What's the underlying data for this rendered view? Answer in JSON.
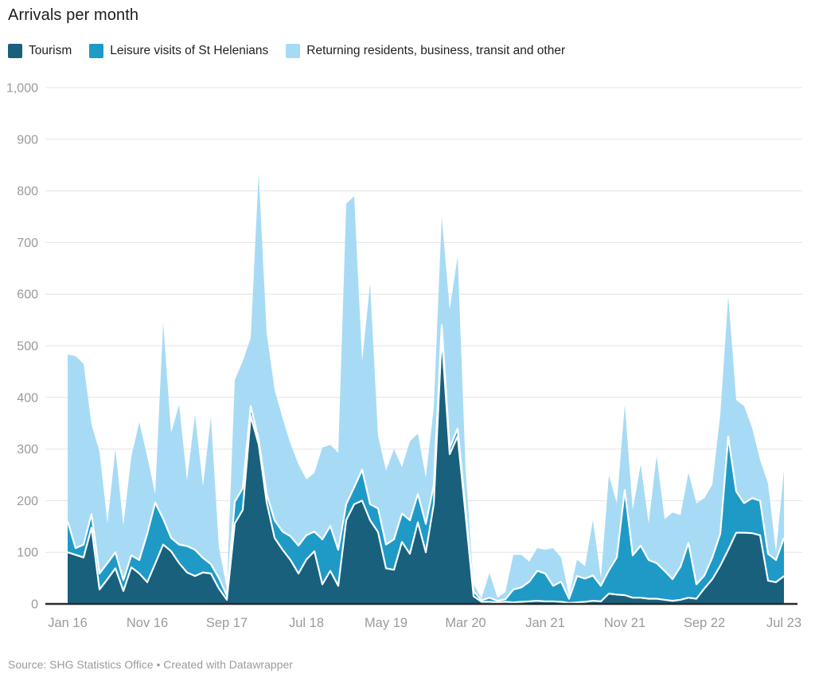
{
  "title": "Arrivals per month",
  "source": "Source: SHG Statistics Office • Created with Datawrapper",
  "colors": {
    "tourism": "#18607c",
    "leisure": "#1f9ac6",
    "returning": "#a7dbf5",
    "grid": "#e4e4e4",
    "baseline": "#2b2b2b",
    "axis_text": "#9a9a9a",
    "separator": "#ffffff"
  },
  "legend": {
    "items": [
      {
        "label": "Tourism",
        "color": "#18607c"
      },
      {
        "label": "Leisure visits of St Helenians",
        "color": "#1f9ac6"
      },
      {
        "label": "Returning residents, business, transit and other",
        "color": "#a7dbf5"
      }
    ]
  },
  "chart_data": {
    "type": "area",
    "stacked": true,
    "title": "Arrivals per month",
    "xlabel": "",
    "ylabel": "",
    "ylim": [
      0,
      1000
    ],
    "grid": "horizontal",
    "legend_position": "top",
    "months": [
      "Jan 16",
      "Feb 16",
      "Mar 16",
      "Apr 16",
      "May 16",
      "Jun 16",
      "Jul 16",
      "Aug 16",
      "Sep 16",
      "Oct 16",
      "Nov 16",
      "Dec 16",
      "Jan 17",
      "Feb 17",
      "Mar 17",
      "Apr 17",
      "May 17",
      "Jun 17",
      "Jul 17",
      "Aug 17",
      "Sep 17",
      "Oct 17",
      "Nov 17",
      "Dec 17",
      "Jan 18",
      "Feb 18",
      "Mar 18",
      "Apr 18",
      "May 18",
      "Jun 18",
      "Jul 18",
      "Aug 18",
      "Sep 18",
      "Oct 18",
      "Nov 18",
      "Dec 18",
      "Jan 19",
      "Feb 19",
      "Mar 19",
      "Apr 19",
      "May 19",
      "Jun 19",
      "Jul 19",
      "Aug 19",
      "Sep 19",
      "Oct 19",
      "Nov 19",
      "Dec 19",
      "Jan 20",
      "Feb 20",
      "Mar 20",
      "Apr 20",
      "May 20",
      "Jun 20",
      "Jul 20",
      "Aug 20",
      "Sep 20",
      "Oct 20",
      "Nov 20",
      "Dec 20",
      "Jan 21",
      "Feb 21",
      "Mar 21",
      "Apr 21",
      "May 21",
      "Jun 21",
      "Jul 21",
      "Aug 21",
      "Sep 21",
      "Oct 21",
      "Nov 21",
      "Dec 21",
      "Jan 22",
      "Feb 22",
      "Mar 22",
      "Apr 22",
      "May 22",
      "Jun 22",
      "Jul 22",
      "Aug 22",
      "Sep 22",
      "Oct 22",
      "Nov 22",
      "Dec 22",
      "Jan 23",
      "Feb 23",
      "Mar 23",
      "Apr 23",
      "May 23",
      "Jun 23",
      "Jul 23"
    ],
    "series": [
      {
        "name": "Tourism",
        "color": "#18607c",
        "values": [
          100,
          95,
          90,
          148,
          28,
          48,
          69,
          25,
          71,
          59,
          42,
          78,
          115,
          102,
          79,
          61,
          54,
          61,
          59,
          30,
          8,
          156,
          182,
          364,
          309,
          197,
          128,
          105,
          85,
          59,
          86,
          102,
          38,
          64,
          35,
          162,
          193,
          200,
          162,
          139,
          69,
          66,
          120,
          97,
          158,
          100,
          193,
          520,
          290,
          325,
          172,
          15,
          4,
          4,
          3,
          4,
          3,
          4,
          5,
          6,
          5,
          5,
          4,
          2,
          3,
          4,
          6,
          5,
          20,
          18,
          17,
          12,
          12,
          10,
          10,
          8,
          6,
          8,
          12,
          10,
          30,
          48,
          74,
          105,
          138,
          138,
          137,
          133,
          45,
          42,
          54
        ]
      },
      {
        "name": "Leisure visits of St Helenians",
        "color": "#1f9ac6",
        "values": [
          60,
          13,
          25,
          26,
          31,
          31,
          31,
          21,
          23,
          26,
          94,
          118,
          50,
          26,
          36,
          51,
          51,
          28,
          18,
          20,
          8,
          42,
          42,
          19,
          9,
          16,
          34,
          35,
          46,
          54,
          47,
          38,
          87,
          87,
          70,
          31,
          33,
          60,
          31,
          46,
          46,
          59,
          55,
          65,
          55,
          55,
          37,
          20,
          12,
          15,
          10,
          10,
          3,
          8,
          3,
          5,
          25,
          28,
          38,
          58,
          54,
          30,
          39,
          8,
          51,
          45,
          49,
          30,
          45,
          72,
          204,
          82,
          101,
          75,
          69,
          56,
          42,
          64,
          106,
          28,
          25,
          42,
          62,
          219,
          80,
          57,
          68,
          67,
          52,
          43,
          74
        ]
      },
      {
        "name": "Returning residents, business, transit and other",
        "color": "#a7dbf5",
        "values": [
          323,
          372,
          350,
          173,
          236,
          77,
          200,
          106,
          191,
          267,
          149,
          17,
          380,
          203,
          271,
          127,
          262,
          139,
          285,
          60,
          14,
          236,
          246,
          132,
          517,
          312,
          253,
          220,
          179,
          157,
          108,
          114,
          178,
          157,
          188,
          582,
          564,
          210,
          427,
          140,
          143,
          175,
          90,
          153,
          117,
          90,
          150,
          210,
          268,
          333,
          80,
          13,
          4,
          48,
          6,
          14,
          67,
          63,
          39,
          44,
          46,
          73,
          47,
          5,
          32,
          24,
          107,
          15,
          184,
          105,
          165,
          88,
          157,
          71,
          208,
          100,
          129,
          100,
          136,
          157,
          150,
          141,
          231,
          272,
          177,
          188,
          136,
          79,
          136,
          15,
          130
        ]
      }
    ],
    "x_tick_indices": [
      0,
      10,
      20,
      30,
      40,
      50,
      60,
      70,
      80,
      90
    ],
    "x_tick_labels": [
      "Jan 16",
      "Nov 16",
      "Sep 17",
      "Jul 18",
      "May 19",
      "Mar 20",
      "Jan 21",
      "Nov 21",
      "Sep 22",
      "Jul 23"
    ],
    "y_ticks": [
      0,
      100,
      200,
      300,
      400,
      500,
      600,
      700,
      800,
      900,
      1000
    ],
    "y_tick_labels": [
      "0",
      "100",
      "200",
      "300",
      "400",
      "500",
      "600",
      "700",
      "800",
      "900",
      "1,000"
    ]
  }
}
